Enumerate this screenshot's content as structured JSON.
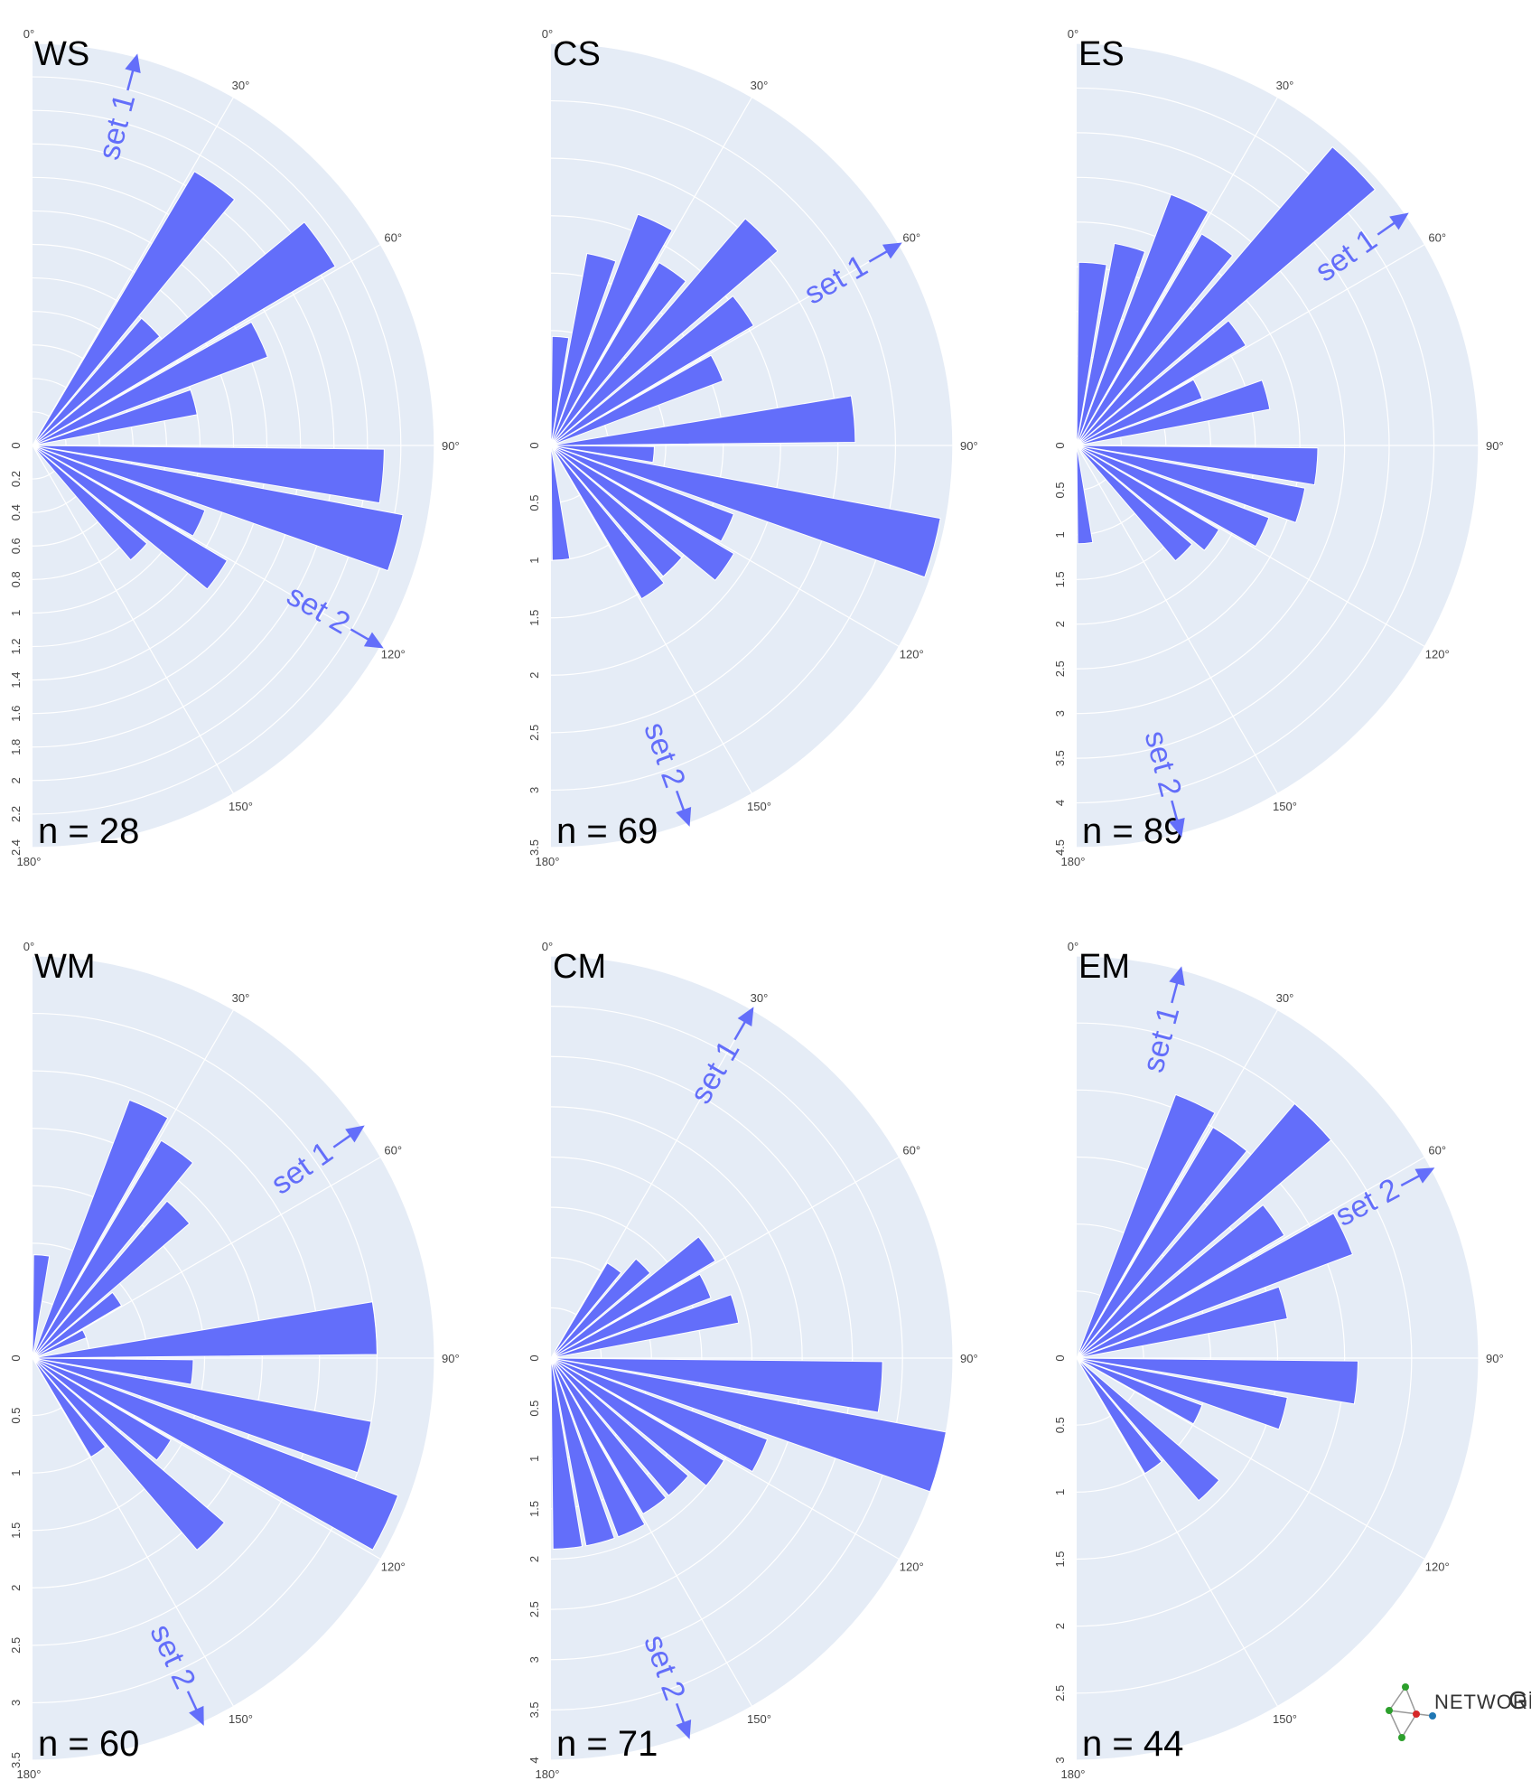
{
  "colors": {
    "bar": "#636efa",
    "polar_bg": "#e5ecf6",
    "grid": "#ffffff",
    "arrow": "#636efa",
    "text": "#000000",
    "tick": "#444444"
  },
  "angle_ticks": [
    "0°",
    "30°",
    "60°",
    "90°",
    "120°",
    "150°",
    "180°"
  ],
  "logo": {
    "text": "NETWORK",
    "suffix": "GT",
    "icon": "network-graph-icon"
  },
  "chart_data": [
    {
      "type": "bar",
      "polar": "rose",
      "title": "WS",
      "count_label": "n = 28",
      "theta_range": [
        0,
        180
      ],
      "r_range": [
        0,
        2.4
      ],
      "r_ticks": [
        "0",
        "0.2",
        "0.4",
        "0.6",
        "0.8",
        "1",
        "1.2",
        "1.4",
        "1.6",
        "1.8",
        "2",
        "2.2",
        "2.4"
      ],
      "bin_width_deg": 10,
      "theta": [
        5,
        15,
        25,
        35,
        45,
        55,
        65,
        75,
        85,
        95,
        105,
        115,
        125,
        135,
        145,
        155,
        165,
        175
      ],
      "r": [
        0,
        0,
        0,
        1.9,
        1.0,
        2.1,
        1.5,
        1.0,
        0,
        2.1,
        2.25,
        1.1,
        1.35,
        0.9,
        0,
        0,
        0,
        0
      ],
      "annotations": [
        {
          "text": "set 1",
          "angle_deg": 15
        },
        {
          "text": "set 2",
          "angle_deg": 120
        }
      ]
    },
    {
      "type": "bar",
      "polar": "rose",
      "title": "CS",
      "count_label": "n = 69",
      "theta_range": [
        0,
        180
      ],
      "r_range": [
        0,
        3.5
      ],
      "r_ticks": [
        "0",
        "0.5",
        "1",
        "1.5",
        "2",
        "2.5",
        "3",
        "3.5"
      ],
      "bin_width_deg": 10,
      "theta": [
        5,
        15,
        25,
        35,
        45,
        55,
        65,
        75,
        85,
        95,
        105,
        115,
        125,
        135,
        145,
        155,
        165,
        175
      ],
      "r": [
        0.95,
        1.7,
        2.15,
        1.85,
        2.6,
        2.05,
        1.6,
        0,
        2.65,
        0.9,
        3.45,
        1.7,
        1.85,
        1.5,
        1.55,
        0,
        0,
        1.0
      ],
      "annotations": [
        {
          "text": "set 1",
          "angle_deg": 60
        },
        {
          "text": "set 2",
          "angle_deg": 160
        }
      ]
    },
    {
      "type": "bar",
      "polar": "rose",
      "title": "ES",
      "count_label": "n = 89",
      "theta_range": [
        0,
        180
      ],
      "r_range": [
        0,
        4.5
      ],
      "r_ticks": [
        "0",
        "0.5",
        "1",
        "1.5",
        "2",
        "2.5",
        "3",
        "3.5",
        "4",
        "4.5"
      ],
      "bin_width_deg": 10,
      "theta": [
        5,
        15,
        25,
        35,
        45,
        55,
        65,
        75,
        85,
        95,
        105,
        115,
        125,
        135,
        145,
        155,
        165,
        175
      ],
      "r": [
        2.05,
        2.3,
        3.0,
        2.75,
        4.4,
        2.2,
        1.5,
        2.2,
        0,
        2.7,
        2.6,
        2.3,
        1.85,
        1.7,
        0,
        0,
        0,
        1.1
      ],
      "annotations": [
        {
          "text": "set 1",
          "angle_deg": 55
        },
        {
          "text": "set 2",
          "angle_deg": 165
        }
      ]
    },
    {
      "type": "bar",
      "polar": "rose",
      "title": "WM",
      "count_label": "n = 60",
      "theta_range": [
        0,
        180
      ],
      "r_range": [
        0,
        3.5
      ],
      "r_ticks": [
        "0",
        "0.5",
        "1",
        "1.5",
        "2",
        "2.5",
        "3",
        "3.5"
      ],
      "bin_width_deg": 10,
      "theta": [
        5,
        15,
        25,
        35,
        45,
        55,
        65,
        75,
        85,
        95,
        105,
        115,
        125,
        135,
        145,
        155,
        165,
        175
      ],
      "r": [
        0.9,
        0,
        2.4,
        2.2,
        1.8,
        0.9,
        0.5,
        0,
        3.0,
        1.4,
        3.0,
        3.4,
        1.4,
        2.2,
        1.0,
        0,
        0,
        0
      ],
      "annotations": [
        {
          "text": "set 1",
          "angle_deg": 55
        },
        {
          "text": "set 2",
          "angle_deg": 155
        }
      ]
    },
    {
      "type": "bar",
      "polar": "rose",
      "title": "CM",
      "count_label": "n = 71",
      "theta_range": [
        0,
        180
      ],
      "r_range": [
        0,
        4
      ],
      "r_ticks": [
        "0",
        "0.5",
        "1",
        "1.5",
        "2",
        "2.5",
        "3",
        "3.5",
        "4"
      ],
      "bin_width_deg": 10,
      "theta": [
        5,
        15,
        25,
        35,
        45,
        55,
        65,
        75,
        85,
        95,
        105,
        115,
        125,
        135,
        145,
        155,
        165,
        175
      ],
      "r": [
        0,
        0,
        0,
        1.1,
        1.3,
        1.9,
        1.7,
        1.9,
        0,
        3.3,
        4.0,
        2.3,
        2.0,
        1.8,
        1.8,
        1.9,
        1.9,
        1.9
      ],
      "annotations": [
        {
          "text": "set 1",
          "angle_deg": 30
        },
        {
          "text": "set 2",
          "angle_deg": 160
        }
      ]
    },
    {
      "type": "bar",
      "polar": "rose",
      "title": "EM",
      "count_label": "n = 44",
      "theta_range": [
        0,
        180
      ],
      "r_range": [
        0,
        3
      ],
      "r_ticks": [
        "0",
        "0.5",
        "1",
        "1.5",
        "2",
        "2.5",
        "3"
      ],
      "bin_width_deg": 10,
      "theta": [
        5,
        15,
        25,
        35,
        45,
        55,
        65,
        75,
        85,
        95,
        105,
        115,
        125,
        135,
        145,
        155,
        165,
        175
      ],
      "r": [
        0,
        0,
        2.1,
        2.0,
        2.5,
        1.8,
        2.2,
        1.6,
        0,
        2.1,
        1.6,
        1.0,
        0,
        1.4,
        1.0,
        0,
        0,
        0
      ],
      "annotations": [
        {
          "text": "set 1",
          "angle_deg": 15
        },
        {
          "text": "set 2",
          "angle_deg": 62
        }
      ]
    }
  ]
}
